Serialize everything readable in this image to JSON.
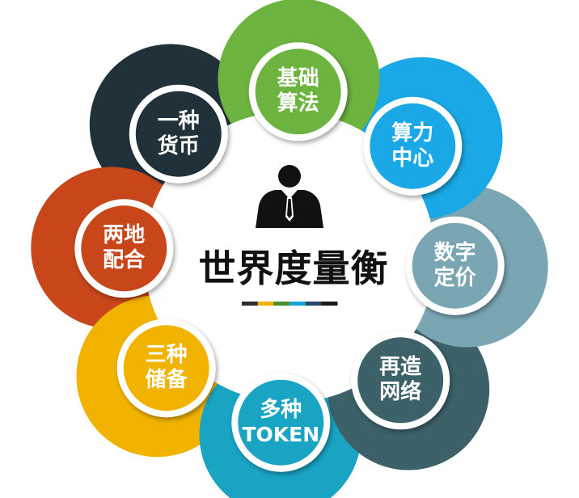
{
  "center": {
    "title": "世界度量衡",
    "icon": "businessman-icon",
    "color_bar": [
      "#2e2e2e",
      "#f0b400",
      "#4b8f2b",
      "#17a6d8",
      "#29476b",
      "#1a1a1a"
    ]
  },
  "nodes": [
    {
      "id": "jichu-suanfa",
      "line1": "基础",
      "line2": "算法",
      "color": "#6cb33f"
    },
    {
      "id": "suanli-zhongxin",
      "line1": "算力",
      "line2": "中心",
      "color": "#1aa9e6"
    },
    {
      "id": "shuzi-dingjia",
      "line1": "数字",
      "line2": "定价",
      "color": "#7aa6b4"
    },
    {
      "id": "zaizao-wangluo",
      "line1": "再造",
      "line2": "网络",
      "color": "#3c6169"
    },
    {
      "id": "duozhong-token",
      "line1": "多种",
      "line2": "TOKEN",
      "color": "#19a4c4"
    },
    {
      "id": "sanzhong-chubei",
      "line1": "三种",
      "line2": "储备",
      "color": "#f2b300"
    },
    {
      "id": "liangdi-peihe",
      "line1": "两地",
      "line2": "配合",
      "color": "#c8461a"
    },
    {
      "id": "yizhong-huobi",
      "line1": "一种",
      "line2": "货币",
      "color": "#213139"
    }
  ]
}
